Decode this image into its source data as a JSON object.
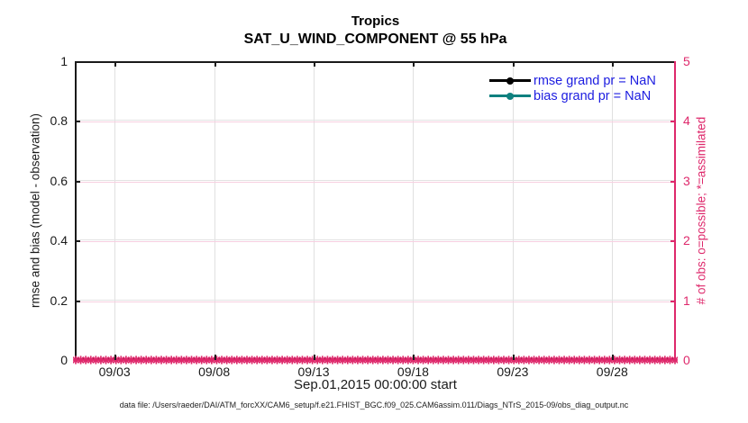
{
  "title": {
    "line1": "Tropics",
    "line2": "SAT_U_WIND_COMPONENT @ 55 hPa"
  },
  "legend": [
    {
      "label": "rmse grand pr = NaN",
      "color": "#000000"
    },
    {
      "label": "bias grand pr = NaN",
      "color": "#0f807f"
    }
  ],
  "footer": {
    "datafile": "data file: /Users/raeder/DAI/ATM_forcXX/CAM6_setup/f.e21.FHIST_BGC.f09_025.CAM6assim.011/Diags_NTrS_2015-09/obs_diag_output.nc"
  },
  "colors": {
    "crimson": "#de286b",
    "teal": "#0f807f",
    "legend_text": "#1c1ce0",
    "grid_gray": "#e3e3e3",
    "grid_pink": "#f7cfe0",
    "spine_black": "#1a1a1a",
    "tick_label_black": "#1a1a1a"
  },
  "chart_data": {
    "type": "line",
    "title": "Tropics",
    "subtitle": "SAT_U_WIND_COMPONENT @ 55 hPa",
    "xlabel": "Sep.01,2015 00:00:00 start",
    "x_ticks": [
      "09/03",
      "09/08",
      "09/13",
      "09/18",
      "09/23",
      "09/28"
    ],
    "x_tick_days": [
      2,
      7,
      12,
      17,
      22,
      27
    ],
    "x_range_days": [
      0,
      30.2
    ],
    "left_axis": {
      "label": "rmse and bias (model - observation)",
      "ticks": [
        "0",
        "0.2",
        "0.4",
        "0.6",
        "0.8",
        "1"
      ],
      "range": [
        0,
        1
      ]
    },
    "right_axis": {
      "label": "# of obs: o=possible; *=assimilated",
      "ticks": [
        "0",
        "1",
        "2",
        "3",
        "4",
        "5"
      ],
      "range": [
        0,
        5
      ]
    },
    "series": [
      {
        "name": "rmse grand pr",
        "value": "NaN",
        "color": "#000000",
        "marker": "filled-circle",
        "points_plotted": 0
      },
      {
        "name": "bias grand pr",
        "value": "NaN",
        "color": "#0f807f",
        "marker": "filled-circle",
        "points_plotted": 0
      },
      {
        "name": "# of obs (possible and assimilated)",
        "color": "#de286b",
        "marker": "*",
        "n_points": 120,
        "constant_value": 0,
        "axis": "right"
      }
    ],
    "grid": true,
    "legend_position": "northeast",
    "legend_box": false
  }
}
